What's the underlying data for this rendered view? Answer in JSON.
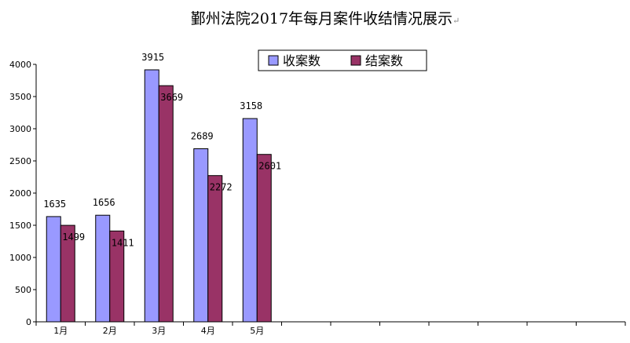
{
  "chart_data": {
    "type": "bar",
    "title": "鄞州法院2017年每月案件收结情况展示",
    "title_mark": "↵",
    "categories": [
      "1月",
      "2月",
      "3月",
      "4月",
      "5月",
      "",
      "",
      "",
      "",
      "",
      "",
      ""
    ],
    "series": [
      {
        "name": "收案数",
        "values": [
          1635,
          1656,
          3915,
          2689,
          3158,
          null,
          null,
          null,
          null,
          null,
          null,
          null
        ],
        "color": "#9999ff"
      },
      {
        "name": "结案数",
        "values": [
          1499,
          1411,
          3669,
          2272,
          2601,
          null,
          null,
          null,
          null,
          null,
          null,
          null
        ],
        "color": "#993366"
      }
    ],
    "ylim": [
      0,
      4000
    ],
    "yticks": [
      0,
      500,
      1000,
      1500,
      2000,
      2500,
      3000,
      3500,
      4000
    ],
    "grid": false,
    "legend": "top-center",
    "data_labels": true
  }
}
